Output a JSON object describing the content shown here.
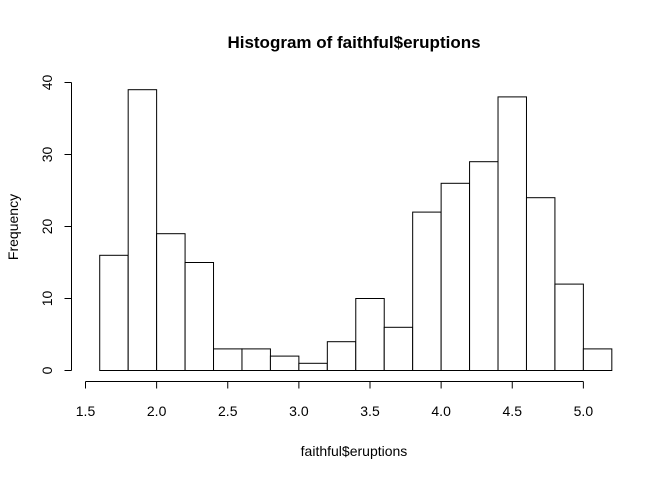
{
  "chart_data": {
    "type": "bar",
    "title": "Histogram of faithful$eruptions",
    "xlabel": "faithful$eruptions",
    "ylabel": "Frequency",
    "bin_edges": [
      1.6,
      1.8,
      2.0,
      2.2,
      2.4,
      2.6,
      2.8,
      3.0,
      3.2,
      3.4,
      3.6,
      3.8,
      4.0,
      4.2,
      4.4,
      4.6,
      4.8,
      5.0,
      5.2
    ],
    "values": [
      16,
      39,
      19,
      15,
      3,
      3,
      2,
      1,
      4,
      10,
      6,
      22,
      26,
      29,
      38,
      24,
      12,
      3
    ],
    "xlim": [
      1.5,
      5.0
    ],
    "ylim": [
      0,
      40
    ],
    "x_ticks": [
      "1.5",
      "2.0",
      "2.5",
      "3.0",
      "3.5",
      "4.0",
      "4.5",
      "5.0"
    ],
    "y_ticks": [
      "0",
      "10",
      "20",
      "30",
      "40"
    ],
    "bar_fill": "#ffffff",
    "bar_stroke": "#000000",
    "grid": false,
    "legend": "none"
  }
}
